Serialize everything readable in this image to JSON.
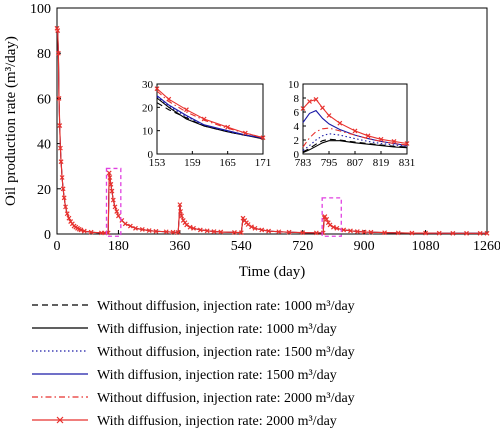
{
  "chart_data": {
    "type": "line",
    "xlabel": "Time (day)",
    "ylabel": "Oil production rate (m³/day)",
    "xlim": [
      0,
      1260
    ],
    "ylim": [
      0,
      100
    ],
    "xticks": [
      0,
      180,
      360,
      540,
      720,
      900,
      1080,
      1260
    ],
    "yticks": [
      0,
      20,
      40,
      60,
      80,
      100
    ],
    "grid": false,
    "legend_position": "below",
    "series": [
      {
        "name": "Without diffusion, injection rate: 1000 m³/day",
        "color": "#000000",
        "style": "dash",
        "marker": "none"
      },
      {
        "name": "With diffusion, injection rate: 1000 m³/day",
        "color": "#000000",
        "style": "solid",
        "marker": "none"
      },
      {
        "name": "Without diffusion, injection rate: 1500 m³/day",
        "color": "#1a1aa6",
        "style": "dot",
        "marker": "none"
      },
      {
        "name": "With diffusion, injection rate: 1500 m³/day",
        "color": "#1a1aa6",
        "style": "solid",
        "marker": "none"
      },
      {
        "name": "Without diffusion, injection rate: 2000 m³/day",
        "color": "#e8322e",
        "style": "dashdot",
        "marker": "none"
      },
      {
        "name": "With diffusion, injection rate: 2000 m³/day",
        "color": "#e8322e",
        "style": "solid",
        "marker": "x"
      }
    ],
    "main_curve": {
      "x": [
        0,
        2,
        4,
        6,
        8,
        10,
        12,
        15,
        18,
        21,
        25,
        30,
        35,
        40,
        45,
        50,
        55,
        60,
        65,
        70,
        80,
        100,
        130,
        140,
        150,
        153,
        155,
        158,
        161,
        165,
        170,
        175,
        180,
        190,
        200,
        215,
        230,
        250,
        270,
        290,
        320,
        340,
        355,
        360,
        362,
        365,
        370,
        375,
        380,
        390,
        400,
        420,
        440,
        460,
        480,
        520,
        540,
        545,
        550,
        555,
        560,
        570,
        580,
        600,
        620,
        650,
        680,
        720,
        760,
        780,
        783,
        785,
        790,
        795,
        800,
        810,
        820,
        840,
        860,
        880,
        900,
        920,
        960,
        1000,
        1040,
        1080,
        1120,
        1160,
        1200,
        1240,
        1260
      ],
      "y": [
        91,
        90,
        80,
        60,
        48,
        38,
        32,
        25,
        20,
        16,
        12,
        9,
        7,
        5.5,
        4.5,
        3.5,
        3,
        2.5,
        2.1,
        1.8,
        1.3,
        0.8,
        0.5,
        0.5,
        0.5,
        27,
        25,
        22,
        19,
        15,
        12,
        10,
        8,
        6,
        4.5,
        3.5,
        2.5,
        2,
        1.5,
        1.2,
        1,
        0.8,
        0.7,
        13,
        10,
        8,
        6,
        5,
        4,
        3,
        2.5,
        1.8,
        1.4,
        1.1,
        0.9,
        0.7,
        0.6,
        7,
        6,
        5,
        4.2,
        3.2,
        2.5,
        1.8,
        1.3,
        1,
        0.8,
        0.6,
        0.5,
        0.5,
        7.3,
        7.7,
        6.5,
        5,
        4,
        3,
        2.5,
        1.8,
        1.4,
        1.1,
        0.9,
        0.8,
        0.6,
        0.5,
        0.4,
        0.4,
        0.35,
        0.3,
        0.3,
        0.3,
        0.3
      ]
    },
    "insets": [
      {
        "xlim": [
          153,
          171
        ],
        "ylim": [
          0,
          30
        ],
        "xticks": [
          153,
          159,
          165,
          171
        ],
        "yticks": [
          0,
          10,
          20,
          30
        ],
        "series": [
          {
            "x": [
              153,
              155,
              158,
              161,
              165,
              168,
              171
            ],
            "y": [
              22,
              19,
              15.5,
              12,
              9.5,
              8,
              7
            ]
          },
          {
            "x": [
              153,
              155,
              158,
              161,
              165,
              168,
              171
            ],
            "y": [
              24,
              20,
              15,
              12,
              9.5,
              8,
              6.5
            ]
          },
          {
            "x": [
              153,
              155,
              158,
              161,
              165,
              168,
              171
            ],
            "y": [
              24.5,
              20.5,
              16,
              12.3,
              9.7,
              8,
              6.8
            ]
          },
          {
            "x": [
              153,
              155,
              158,
              161,
              165,
              168,
              171
            ],
            "y": [
              25,
              21,
              16.5,
              12.5,
              10,
              8.2,
              6.8
            ]
          },
          {
            "x": [
              153,
              155,
              158,
              161,
              165,
              168,
              171
            ],
            "y": [
              27,
              22.5,
              18,
              14.5,
              11,
              9,
              7
            ]
          },
          {
            "x": [
              153,
              155,
              158,
              161,
              165,
              168,
              171
            ],
            "y": [
              28,
              23.5,
              19,
              15,
              11.5,
              9,
              7
            ]
          }
        ]
      },
      {
        "xlim": [
          783,
          831
        ],
        "ylim": [
          0,
          10
        ],
        "xticks": [
          783,
          795,
          807,
          819,
          831
        ],
        "yticks": [
          0,
          2,
          4,
          6,
          8,
          10
        ],
        "series": [
          {
            "x": [
              783,
              786,
              789,
              792,
              795,
              800,
              807,
              813,
              819,
              825,
              831
            ],
            "y": [
              0.3,
              0.8,
              1.4,
              1.9,
              2.1,
              2.0,
              1.7,
              1.5,
              1.3,
              1.1,
              1.0
            ]
          },
          {
            "x": [
              783,
              786,
              789,
              792,
              795,
              800,
              807,
              813,
              819,
              825,
              831
            ],
            "y": [
              0.2,
              0.6,
              1.1,
              1.6,
              1.9,
              1.9,
              1.6,
              1.4,
              1.2,
              1.0,
              0.9
            ]
          },
          {
            "x": [
              783,
              786,
              789,
              792,
              795,
              800,
              807,
              813,
              819,
              825,
              831
            ],
            "y": [
              0.5,
              1.2,
              2.0,
              2.6,
              2.9,
              2.7,
              2.2,
              1.8,
              1.5,
              1.3,
              1.1
            ]
          },
          {
            "x": [
              783,
              786,
              789,
              792,
              795,
              800,
              807,
              813,
              819,
              825,
              831
            ],
            "y": [
              4.5,
              5.8,
              6.2,
              5.1,
              4.3,
              3.5,
              2.7,
              2.2,
              1.8,
              1.5,
              1.2
            ]
          },
          {
            "x": [
              783,
              786,
              789,
              792,
              795,
              800,
              807,
              813,
              819,
              825,
              831
            ],
            "y": [
              1.0,
              2.3,
              3.2,
              3.6,
              3.7,
              3.3,
              2.7,
              2.2,
              1.8,
              1.5,
              1.3
            ]
          },
          {
            "x": [
              783,
              786,
              789,
              792,
              795,
              800,
              807,
              813,
              819,
              825,
              831
            ],
            "y": [
              6.5,
              7.5,
              7.8,
              6.6,
              5.5,
              4.4,
              3.3,
              2.6,
              2.1,
              1.8,
              1.5
            ]
          }
        ]
      }
    ]
  }
}
